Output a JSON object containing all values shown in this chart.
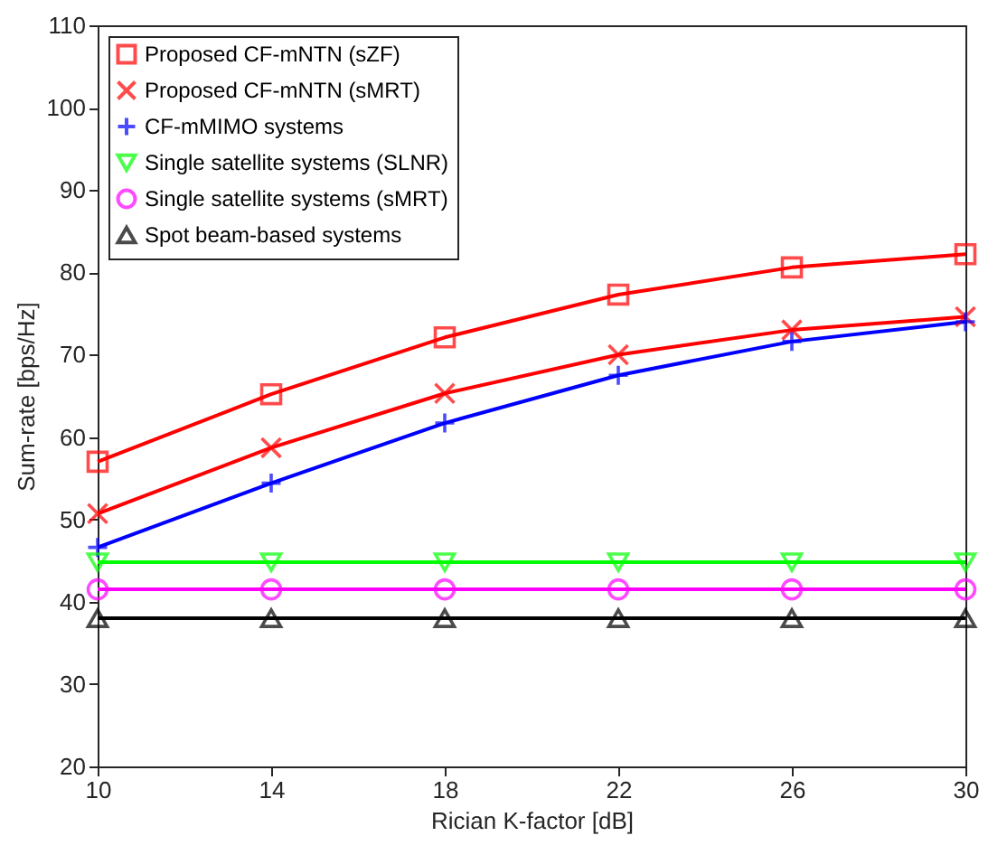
{
  "chart_data": {
    "type": "line",
    "xlabel": "Rician K-factor [dB]",
    "ylabel": "Sum-rate [bps/Hz]",
    "x": [
      10,
      14,
      18,
      22,
      26,
      30
    ],
    "xlim": [
      10,
      30
    ],
    "xticks": [
      10,
      14,
      18,
      22,
      26,
      30
    ],
    "ylim": [
      20,
      110
    ],
    "yticks": [
      20,
      30,
      40,
      50,
      60,
      70,
      80,
      90,
      100,
      110
    ],
    "grid": false,
    "legend": "top left",
    "line_style": "solid",
    "series": [
      {
        "name": "Proposed CF-mNTN (sZF)",
        "color": "#ff0000",
        "marker": "square",
        "values": [
          57,
          65.2,
          72.1,
          77.3,
          80.6,
          82.2
        ]
      },
      {
        "name": "Proposed CF-mNTN (sMRT)",
        "color": "#ff0000",
        "marker": "x",
        "values": [
          50.7,
          58.7,
          65.3,
          70,
          73,
          74.6
        ]
      },
      {
        "name": "CF-mMIMO systems",
        "color": "#0000ff",
        "marker": "plus",
        "values": [
          46.6,
          54.4,
          61.7,
          67.5,
          71.6,
          74
        ]
      },
      {
        "name": "Single satellite systems (SLNR)",
        "color": "#00ff00",
        "marker": "triangle-down",
        "values": [
          44.8,
          44.8,
          44.8,
          44.8,
          44.8,
          44.8
        ]
      },
      {
        "name": "Single satellite systems (sMRT)",
        "color": "#ff00ff",
        "marker": "circle",
        "values": [
          41.5,
          41.5,
          41.5,
          41.5,
          41.5,
          41.5
        ]
      },
      {
        "name": "Spot beam-based systems",
        "color": "#000000",
        "marker": "triangle-up",
        "values": [
          38,
          38,
          38,
          38,
          38,
          38
        ]
      }
    ]
  }
}
